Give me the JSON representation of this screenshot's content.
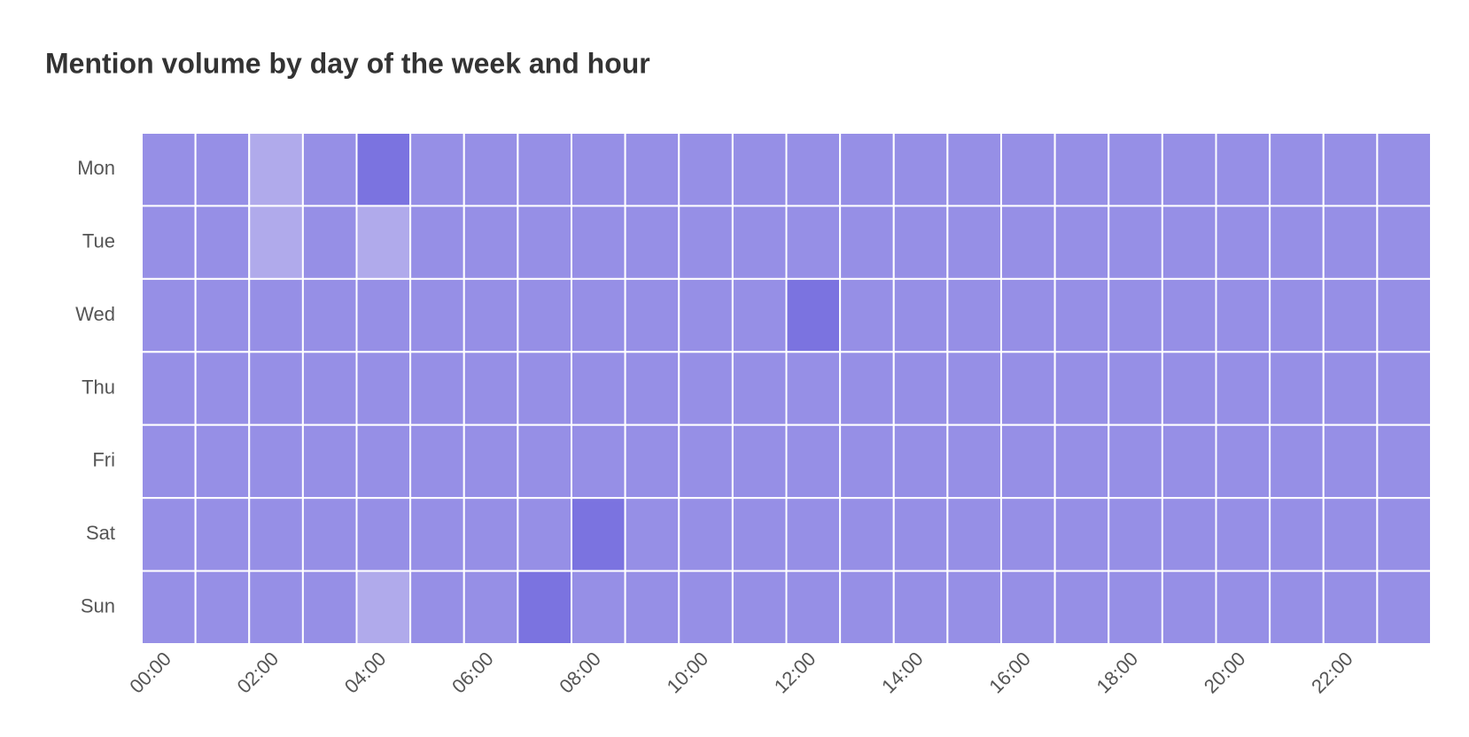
{
  "chart_data": {
    "type": "heatmap",
    "title": "Mention volume by day of the week and hour",
    "x": [
      "00:00",
      null,
      "02:00",
      null,
      "04:00",
      null,
      "06:00",
      null,
      "08:00",
      null,
      "10:00",
      null,
      "12:00",
      null,
      "14:00",
      null,
      "16:00",
      null,
      "18:00",
      null,
      "20:00",
      null,
      "22:00",
      null
    ],
    "y": [
      "Mon",
      "Tue",
      "Wed",
      "Thu",
      "Fri",
      "Sat",
      "Sun"
    ],
    "values": [
      [
        2,
        2,
        1,
        2,
        3,
        2,
        2,
        2,
        2,
        2,
        2,
        2,
        2,
        2,
        2,
        2,
        2,
        2,
        2,
        2,
        2,
        2,
        2,
        2
      ],
      [
        2,
        2,
        1,
        2,
        1,
        2,
        2,
        2,
        2,
        2,
        2,
        2,
        2,
        2,
        2,
        2,
        2,
        2,
        2,
        2,
        2,
        2,
        2,
        2
      ],
      [
        2,
        2,
        2,
        2,
        2,
        2,
        2,
        2,
        2,
        2,
        2,
        2,
        3,
        2,
        2,
        2,
        2,
        2,
        2,
        2,
        2,
        2,
        2,
        2
      ],
      [
        2,
        2,
        2,
        2,
        2,
        2,
        2,
        2,
        2,
        2,
        2,
        2,
        2,
        2,
        2,
        2,
        2,
        2,
        2,
        2,
        2,
        2,
        2,
        2
      ],
      [
        2,
        2,
        2,
        2,
        2,
        2,
        2,
        2,
        2,
        2,
        2,
        2,
        2,
        2,
        2,
        2,
        2,
        2,
        2,
        2,
        2,
        2,
        2,
        2
      ],
      [
        2,
        2,
        2,
        2,
        2,
        2,
        2,
        2,
        3,
        2,
        2,
        2,
        2,
        2,
        2,
        2,
        2,
        2,
        2,
        2,
        2,
        2,
        2,
        2
      ],
      [
        2,
        2,
        2,
        2,
        1,
        2,
        2,
        3,
        2,
        2,
        2,
        2,
        2,
        2,
        2,
        2,
        2,
        2,
        2,
        2,
        2,
        2,
        2,
        2
      ]
    ],
    "zlim": [
      1,
      3
    ],
    "colorscale": [
      "#b0aaeb",
      "#7b73e0"
    ]
  }
}
